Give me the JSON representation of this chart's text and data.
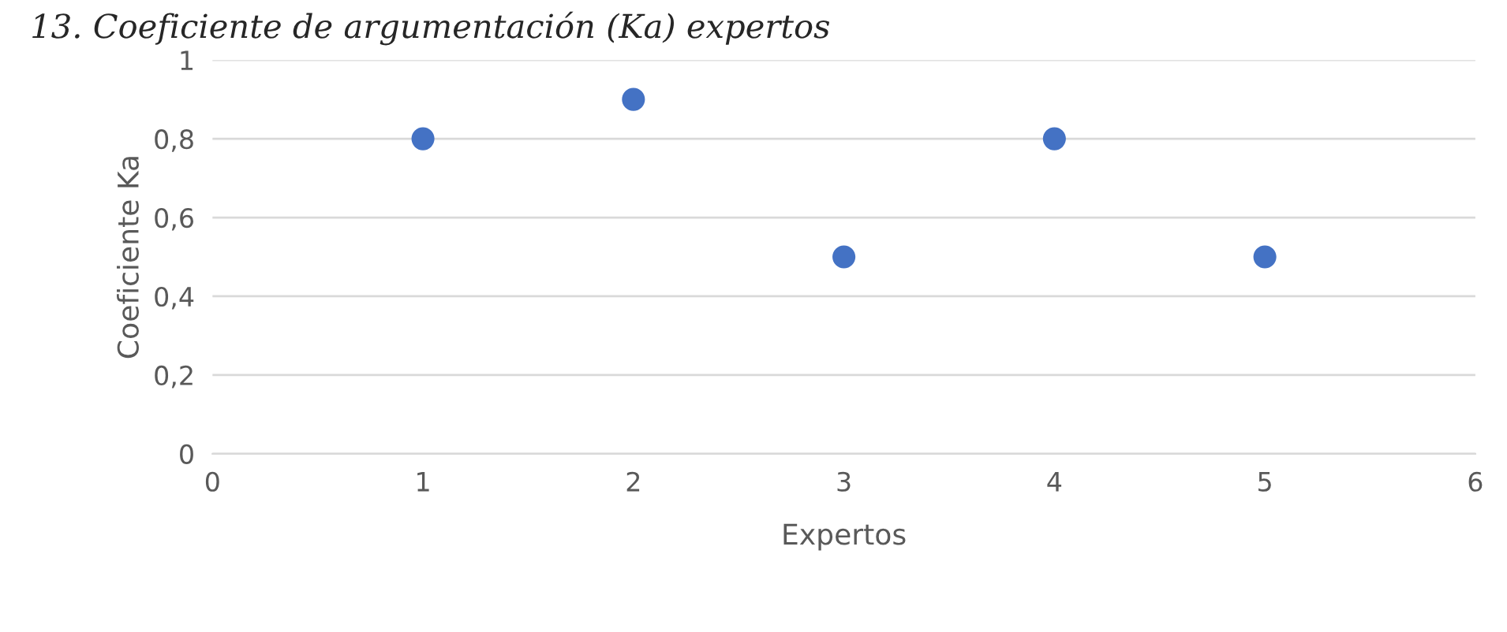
{
  "chart_data": {
    "type": "scatter",
    "title": "13. Coeficiente de argumentación (Ka) expertos",
    "xlabel": "Expertos",
    "ylabel": "Coeficiente Ka",
    "x": [
      1,
      2,
      3,
      4,
      5
    ],
    "series": [
      {
        "color": "#4472c4",
        "values": [
          0.8,
          0.9,
          0.5,
          0.8,
          0.5
        ]
      }
    ],
    "xlim": [
      0,
      6
    ],
    "xticks": [
      0,
      1,
      2,
      3,
      4,
      5,
      6
    ],
    "ylim": [
      0,
      1
    ],
    "yticks": [
      {
        "value": 0,
        "label": "0"
      },
      {
        "value": 0.2,
        "label": "0,2"
      },
      {
        "value": 0.4,
        "label": "0,4"
      },
      {
        "value": 0.6,
        "label": "0,6"
      },
      {
        "value": 0.8,
        "label": "0,8"
      },
      {
        "value": 1,
        "label": "1"
      }
    ],
    "grid": "y",
    "marker": "circle",
    "legend": false
  }
}
